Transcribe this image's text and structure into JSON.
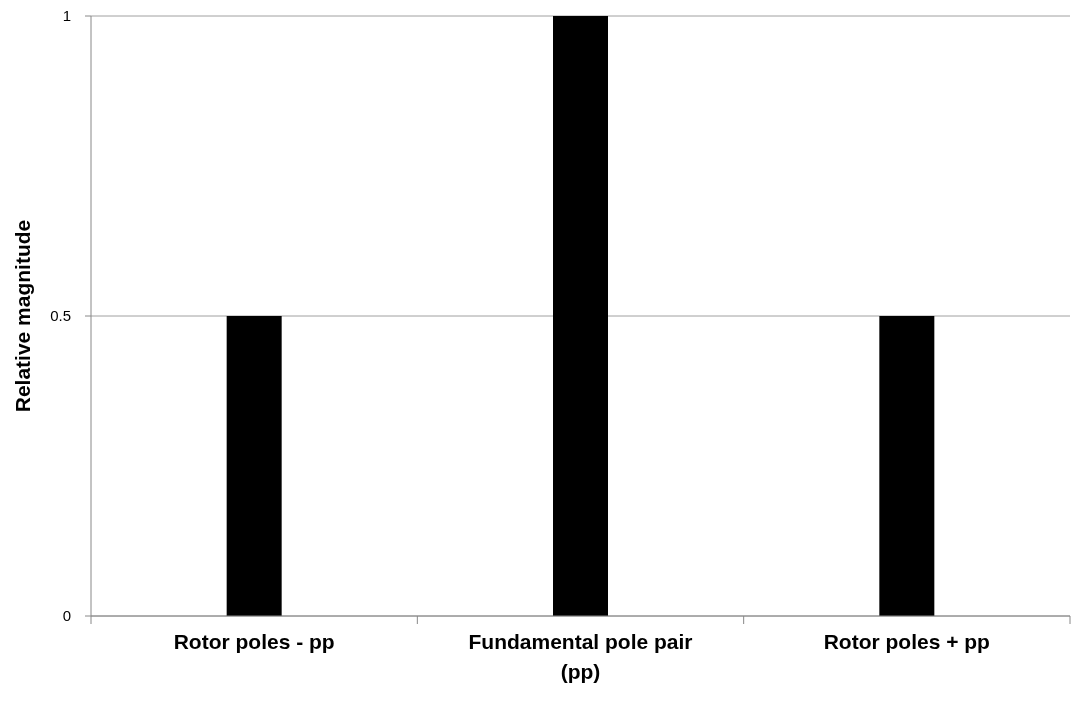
{
  "chart_data": {
    "type": "bar",
    "ylabel": "Relative magnitude",
    "categories": [
      "Rotor poles - pp",
      "Fundamental pole pair (pp)",
      "Rotor poles + pp"
    ],
    "values": [
      0.5,
      1,
      0.5
    ],
    "color": "#000000",
    "ylim": [
      0,
      1
    ],
    "yticks": [
      0,
      0.5,
      1
    ],
    "grid": "y"
  }
}
